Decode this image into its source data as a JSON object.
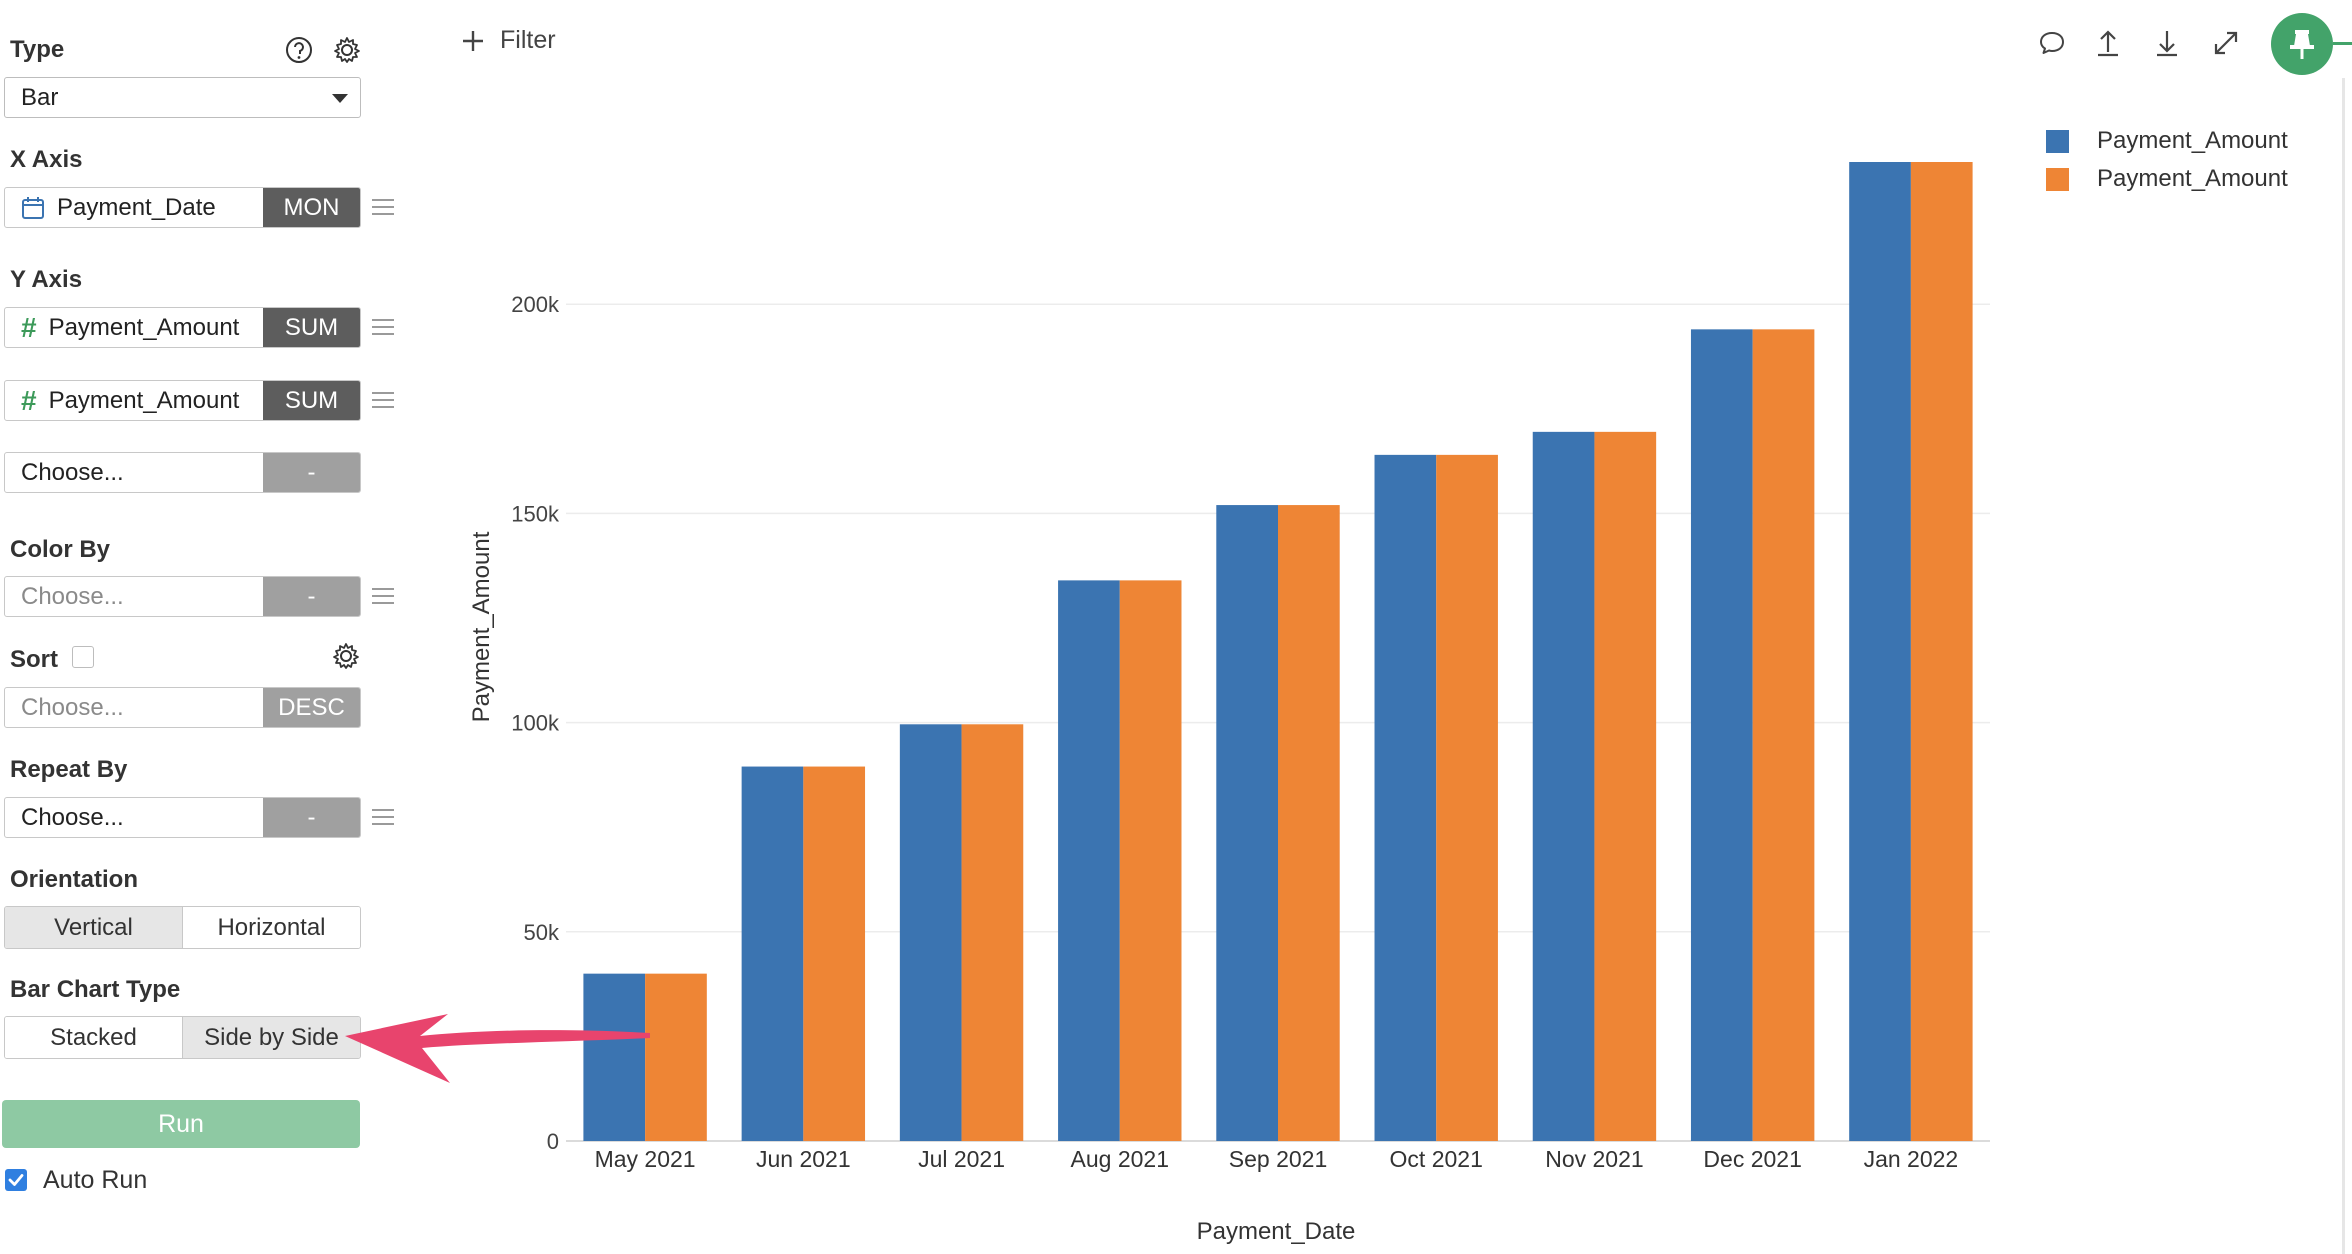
{
  "left_panel": {
    "type": {
      "label": "Type",
      "selected": "Bar"
    },
    "x_axis": {
      "label": "X Axis",
      "field": "Payment_Date",
      "aggregation": "MON"
    },
    "y_axis": {
      "label": "Y Axis",
      "fields": [
        {
          "name": "Payment_Amount",
          "aggregation": "SUM"
        },
        {
          "name": "Payment_Amount",
          "aggregation": "SUM"
        }
      ],
      "empty_placeholder": "Choose...",
      "empty_aggregation": "-"
    },
    "color_by": {
      "label": "Color By",
      "placeholder": "Choose...",
      "aggregation": "-"
    },
    "sort": {
      "label": "Sort",
      "checked": false,
      "placeholder": "Choose...",
      "order": "DESC"
    },
    "repeat_by": {
      "label": "Repeat By",
      "placeholder": "Choose...",
      "aggregation": "-"
    },
    "orientation": {
      "label": "Orientation",
      "options": [
        "Vertical",
        "Horizontal"
      ],
      "selected": "Vertical"
    },
    "bar_chart_type": {
      "label": "Bar Chart Type",
      "options": [
        "Stacked",
        "Side by Side"
      ],
      "selected": "Side by Side"
    },
    "run_label": "Run",
    "auto_run": {
      "label": "Auto Run",
      "checked": true
    }
  },
  "toolbar": {
    "filter_label": "Filter",
    "icons": [
      "comment-icon",
      "export-icon",
      "download-icon",
      "expand-icon",
      "pin-icon"
    ]
  },
  "colors": {
    "series_1": "#3b74b1",
    "series_2": "#ee8535",
    "accent_green": "#43a36a",
    "annotation_arrow": "#e8446d"
  },
  "chart_data": {
    "type": "bar",
    "orientation": "vertical",
    "mode": "side-by-side",
    "categories": [
      "May 2021",
      "Jun 2021",
      "Jul 2021",
      "Aug 2021",
      "Sep 2021",
      "Oct 2021",
      "Nov 2021",
      "Dec 2021",
      "Jan 2022"
    ],
    "series": [
      {
        "name": "Payment_Amount",
        "color": "#3b74b1",
        "values": [
          40000,
          89500,
          99600,
          134000,
          152000,
          164000,
          169500,
          194000,
          234000
        ]
      },
      {
        "name": "Payment_Amount",
        "color": "#ee8535",
        "values": [
          40000,
          89500,
          99600,
          134000,
          152000,
          164000,
          169500,
          194000,
          234000
        ]
      }
    ],
    "xlabel": "Payment_Date",
    "ylabel": "Payment_Amount",
    "ylim": [
      0,
      234000
    ],
    "yticks": [
      0,
      50000,
      100000,
      150000,
      200000
    ],
    "ytick_labels": [
      "0",
      "50k",
      "100k",
      "150k",
      "200k"
    ],
    "grid": true,
    "legend_position": "top-right"
  }
}
